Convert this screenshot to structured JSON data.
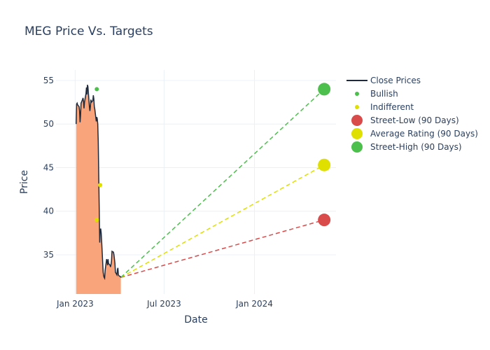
{
  "chart_data": {
    "type": "line",
    "title": "MEG Price Vs. Targets",
    "xlabel": "Date",
    "ylabel": "Price",
    "x_range": [
      "2022-11-23",
      "2024-06-15"
    ],
    "ylim": [
      30.5,
      56.2
    ],
    "x_ticks": [
      {
        "date": "2023-01-01",
        "label": "Jan 2023"
      },
      {
        "date": "2023-07-01",
        "label": "Jul 2023"
      },
      {
        "date": "2024-01-01",
        "label": "Jan 2024"
      }
    ],
    "y_ticks": [
      35,
      40,
      45,
      50,
      55
    ],
    "grid": true,
    "legend_position": "right",
    "close_prices": {
      "name": "Close Prices",
      "color": "#1f2a3c",
      "fill_color": "#f9a47a",
      "points": [
        [
          "2023-01-03",
          50.0
        ],
        [
          "2023-01-04",
          52.3
        ],
        [
          "2023-01-05",
          52.4
        ],
        [
          "2023-01-06",
          52.2
        ],
        [
          "2023-01-09",
          52.0
        ],
        [
          "2023-01-10",
          51.5
        ],
        [
          "2023-01-11",
          50.2
        ],
        [
          "2023-01-12",
          51.0
        ],
        [
          "2023-01-13",
          52.4
        ],
        [
          "2023-01-16",
          52.8
        ],
        [
          "2023-01-17",
          53.0
        ],
        [
          "2023-01-18",
          52.6
        ],
        [
          "2023-01-19",
          51.8
        ],
        [
          "2023-01-20",
          52.5
        ],
        [
          "2023-01-23",
          53.5
        ],
        [
          "2023-01-24",
          54.2
        ],
        [
          "2023-01-25",
          53.4
        ],
        [
          "2023-01-26",
          54.5
        ],
        [
          "2023-01-27",
          54.3
        ],
        [
          "2023-01-30",
          52.0
        ],
        [
          "2023-01-31",
          51.5
        ],
        [
          "2023-02-01",
          52.0
        ],
        [
          "2023-02-02",
          52.8
        ],
        [
          "2023-02-03",
          52.5
        ],
        [
          "2023-02-06",
          52.7
        ],
        [
          "2023-02-07",
          53.3
        ],
        [
          "2023-02-08",
          52.9
        ],
        [
          "2023-02-09",
          52.0
        ],
        [
          "2023-02-10",
          51.7
        ],
        [
          "2023-02-13",
          50.3
        ],
        [
          "2023-02-14",
          50.8
        ],
        [
          "2023-02-15",
          50.6
        ],
        [
          "2023-02-16",
          50.0
        ],
        [
          "2023-02-17",
          48.0
        ],
        [
          "2023-02-20",
          36.4
        ],
        [
          "2023-02-21",
          37.8
        ],
        [
          "2023-02-22",
          38.0
        ],
        [
          "2023-02-23",
          37.5
        ],
        [
          "2023-02-24",
          36.5
        ],
        [
          "2023-02-27",
          33.0
        ],
        [
          "2023-02-28",
          32.6
        ],
        [
          "2023-03-01",
          32.4
        ],
        [
          "2023-03-02",
          32.3
        ],
        [
          "2023-03-03",
          33.2
        ],
        [
          "2023-03-06",
          34.5
        ],
        [
          "2023-03-07",
          34.2
        ],
        [
          "2023-03-08",
          33.8
        ],
        [
          "2023-03-09",
          34.5
        ],
        [
          "2023-03-10",
          34.0
        ],
        [
          "2023-03-13",
          33.8
        ],
        [
          "2023-03-14",
          33.6
        ],
        [
          "2023-03-15",
          33.9
        ],
        [
          "2023-03-16",
          34.3
        ],
        [
          "2023-03-17",
          35.4
        ],
        [
          "2023-03-20",
          35.3
        ],
        [
          "2023-03-21",
          35.0
        ],
        [
          "2023-03-22",
          34.5
        ],
        [
          "2023-03-23",
          34.0
        ],
        [
          "2023-03-24",
          33.0
        ],
        [
          "2023-03-27",
          32.7
        ],
        [
          "2023-03-28",
          33.3
        ],
        [
          "2023-03-29",
          33.5
        ],
        [
          "2023-03-30",
          32.7
        ],
        [
          "2023-03-31",
          32.6
        ],
        [
          "2023-04-03",
          32.5
        ],
        [
          "2023-04-04",
          32.4
        ]
      ]
    },
    "analyst_ratings": [
      {
        "name": "Bullish",
        "color": "#4cbf4c",
        "points": [
          [
            "2023-02-14",
            54.0
          ]
        ]
      },
      {
        "name": "Indifferent",
        "color": "#dfdf00",
        "points": [
          [
            "2023-02-14",
            39.0
          ],
          [
            "2023-02-21",
            43.0
          ]
        ]
      }
    ],
    "targets": {
      "start": [
        "2023-04-04",
        32.4
      ],
      "target_date": "2024-05-22",
      "series": [
        {
          "name": "Street-Low (90 Days)",
          "value": 39.0,
          "color": "#d94a4a"
        },
        {
          "name": "Average Rating (90 Days)",
          "value": 45.3,
          "color": "#dfdf00"
        },
        {
          "name": "Street-High (90 Days)",
          "value": 54.0,
          "color": "#4cbf4c"
        }
      ]
    }
  }
}
